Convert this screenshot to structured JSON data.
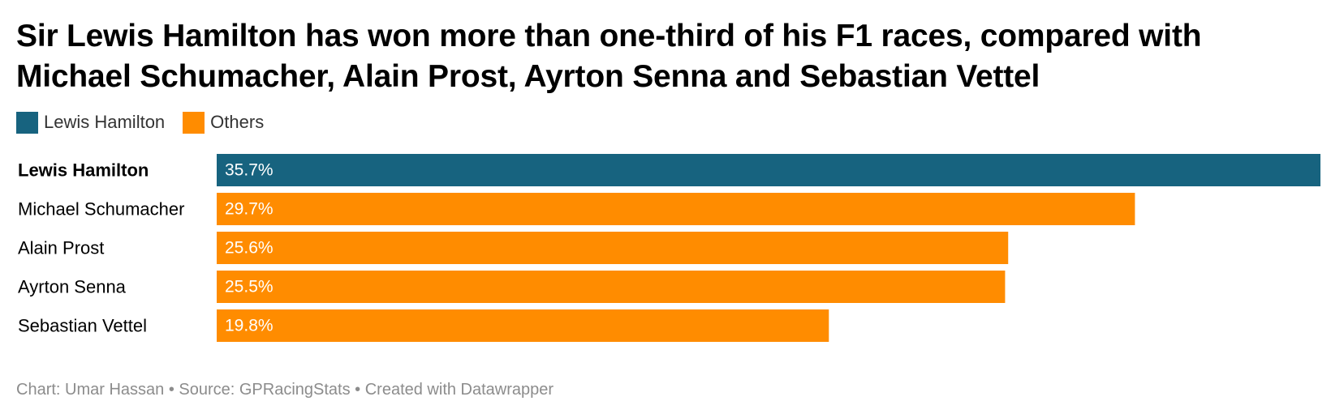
{
  "title": "Sir Lewis Hamilton has won more than one-third of his F1 races, compared with Michael Schumacher, Alain Prost, Ayrton Senna and Sebastian Vettel",
  "legend": [
    {
      "label": "Lewis Hamilton",
      "color": "#17637f"
    },
    {
      "label": "Others",
      "color": "#ff8c00"
    }
  ],
  "chart_data": {
    "type": "bar",
    "orientation": "horizontal",
    "categories": [
      "Lewis Hamilton",
      "Michael Schumacher",
      "Alain Prost",
      "Ayrton Senna",
      "Sebastian Vettel"
    ],
    "values": [
      35.7,
      29.7,
      25.6,
      25.5,
      19.8
    ],
    "value_labels": [
      "35.7%",
      "29.7%",
      "25.6%",
      "25.5%",
      "19.8%"
    ],
    "groups": [
      "Lewis Hamilton",
      "Others",
      "Others",
      "Others",
      "Others"
    ],
    "highlight": "Lewis Hamilton",
    "xlim": [
      0,
      35.7
    ],
    "grid": false,
    "legend_position": "top-left"
  },
  "footer": {
    "text": "Chart: Umar Hassan • Source: GPRacingStats • Created with Datawrapper"
  }
}
